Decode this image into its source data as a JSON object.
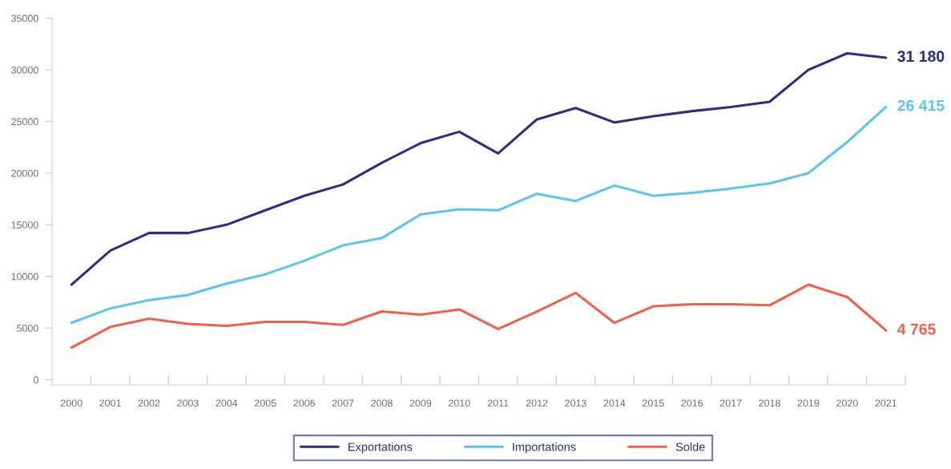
{
  "chart_data": {
    "type": "line",
    "categories": [
      "2000",
      "2001",
      "2002",
      "2003",
      "2004",
      "2005",
      "2006",
      "2007",
      "2008",
      "2009",
      "2010",
      "2011",
      "2012",
      "2013",
      "2014",
      "2015",
      "2016",
      "2017",
      "2018",
      "2019",
      "2020",
      "2021"
    ],
    "ylim": [
      -500,
      35000
    ],
    "yticks": [
      0,
      5000,
      10000,
      15000,
      20000,
      25000,
      30000,
      35000
    ],
    "series": [
      {
        "name": "Exportations",
        "color": "#2d2e83",
        "values": [
          9200,
          12500,
          14200,
          14200,
          15000,
          16400,
          17800,
          18900,
          21000,
          22900,
          24000,
          21900,
          25200,
          26300,
          24900,
          25500,
          26000,
          26400,
          26900,
          30000,
          31600,
          31180
        ],
        "value_labels": [
          null,
          null,
          null,
          null,
          null,
          null,
          null,
          null,
          null,
          null,
          null,
          null,
          null,
          null,
          null,
          null,
          null,
          null,
          null,
          null,
          null,
          "31 180"
        ]
      },
      {
        "name": "Importations",
        "color": "#5bc5f2",
        "values": [
          5500,
          6900,
          7700,
          8200,
          9300,
          10200,
          11500,
          13000,
          13700,
          16000,
          16500,
          16400,
          18000,
          17300,
          18800,
          17800,
          18100,
          18500,
          19000,
          20000,
          23000,
          26415
        ],
        "value_labels": [
          null,
          null,
          null,
          null,
          null,
          null,
          null,
          null,
          null,
          null,
          null,
          null,
          null,
          null,
          null,
          null,
          null,
          null,
          null,
          null,
          null,
          "26 415"
        ]
      },
      {
        "name": "Solde",
        "color": "#f0604d",
        "values": [
          3100,
          5100,
          5900,
          5400,
          5200,
          5600,
          5600,
          5300,
          6600,
          6300,
          6800,
          4900,
          6600,
          8400,
          5500,
          7100,
          7300,
          7300,
          7200,
          9200,
          8000,
          4765
        ],
        "value_labels": [
          null,
          null,
          null,
          null,
          null,
          null,
          null,
          null,
          null,
          null,
          null,
          null,
          null,
          null,
          null,
          null,
          null,
          null,
          null,
          null,
          null,
          "4 765"
        ]
      }
    ],
    "legend": "bottom",
    "line_style": "solid"
  }
}
